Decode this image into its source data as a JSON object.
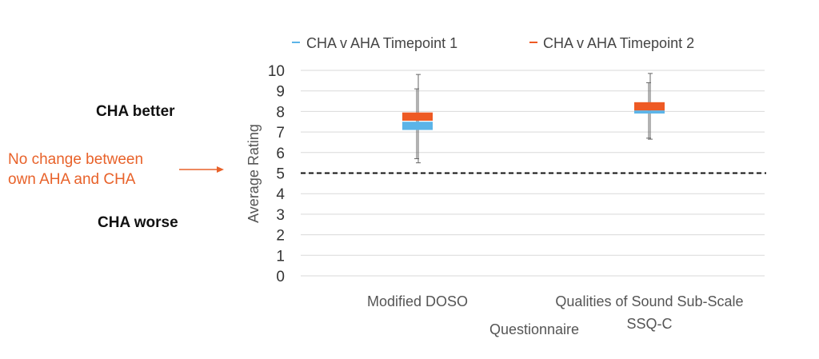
{
  "annotations": {
    "better": "CHA better",
    "worse": "CHA worse",
    "no_change_line1": "No change between",
    "no_change_line2": "own AHA and CHA"
  },
  "colors": {
    "series1": "#5bb4e8",
    "series2": "#ee5a24",
    "annotation": "#e8622a",
    "grid": "#d9d9d9",
    "whisker": "#666666",
    "reference": "#111111"
  },
  "chart_data": {
    "type": "box",
    "title": "",
    "xlabel": "Questionnaire",
    "ylabel": "Average Rating",
    "ylim": [
      0,
      10
    ],
    "yticks": [
      0,
      1,
      2,
      3,
      4,
      5,
      6,
      7,
      8,
      9,
      10
    ],
    "grid": true,
    "legend": "top",
    "reference_line": 5,
    "categories": [
      {
        "line1": "Modified DOSO",
        "line2": ""
      },
      {
        "line1": "Qualities of Sound Sub-Scale",
        "line2": "SSQ-C"
      }
    ],
    "series": [
      {
        "name": "CHA v AHA Timepoint 1",
        "boxes": [
          {
            "q1": 7.1,
            "median": 7.5,
            "q3": 7.5,
            "min": 5.7,
            "max": 9.1
          },
          {
            "q1": 7.9,
            "median": 8.05,
            "q3": 8.05,
            "min": 6.7,
            "max": 9.4
          }
        ]
      },
      {
        "name": "CHA v AHA Timepoint 2",
        "boxes": [
          {
            "q1": 7.55,
            "median": 7.55,
            "q3": 7.95,
            "min": 5.5,
            "max": 9.8
          },
          {
            "q1": 8.05,
            "median": 8.05,
            "q3": 8.45,
            "min": 6.65,
            "max": 9.85
          }
        ]
      }
    ]
  }
}
